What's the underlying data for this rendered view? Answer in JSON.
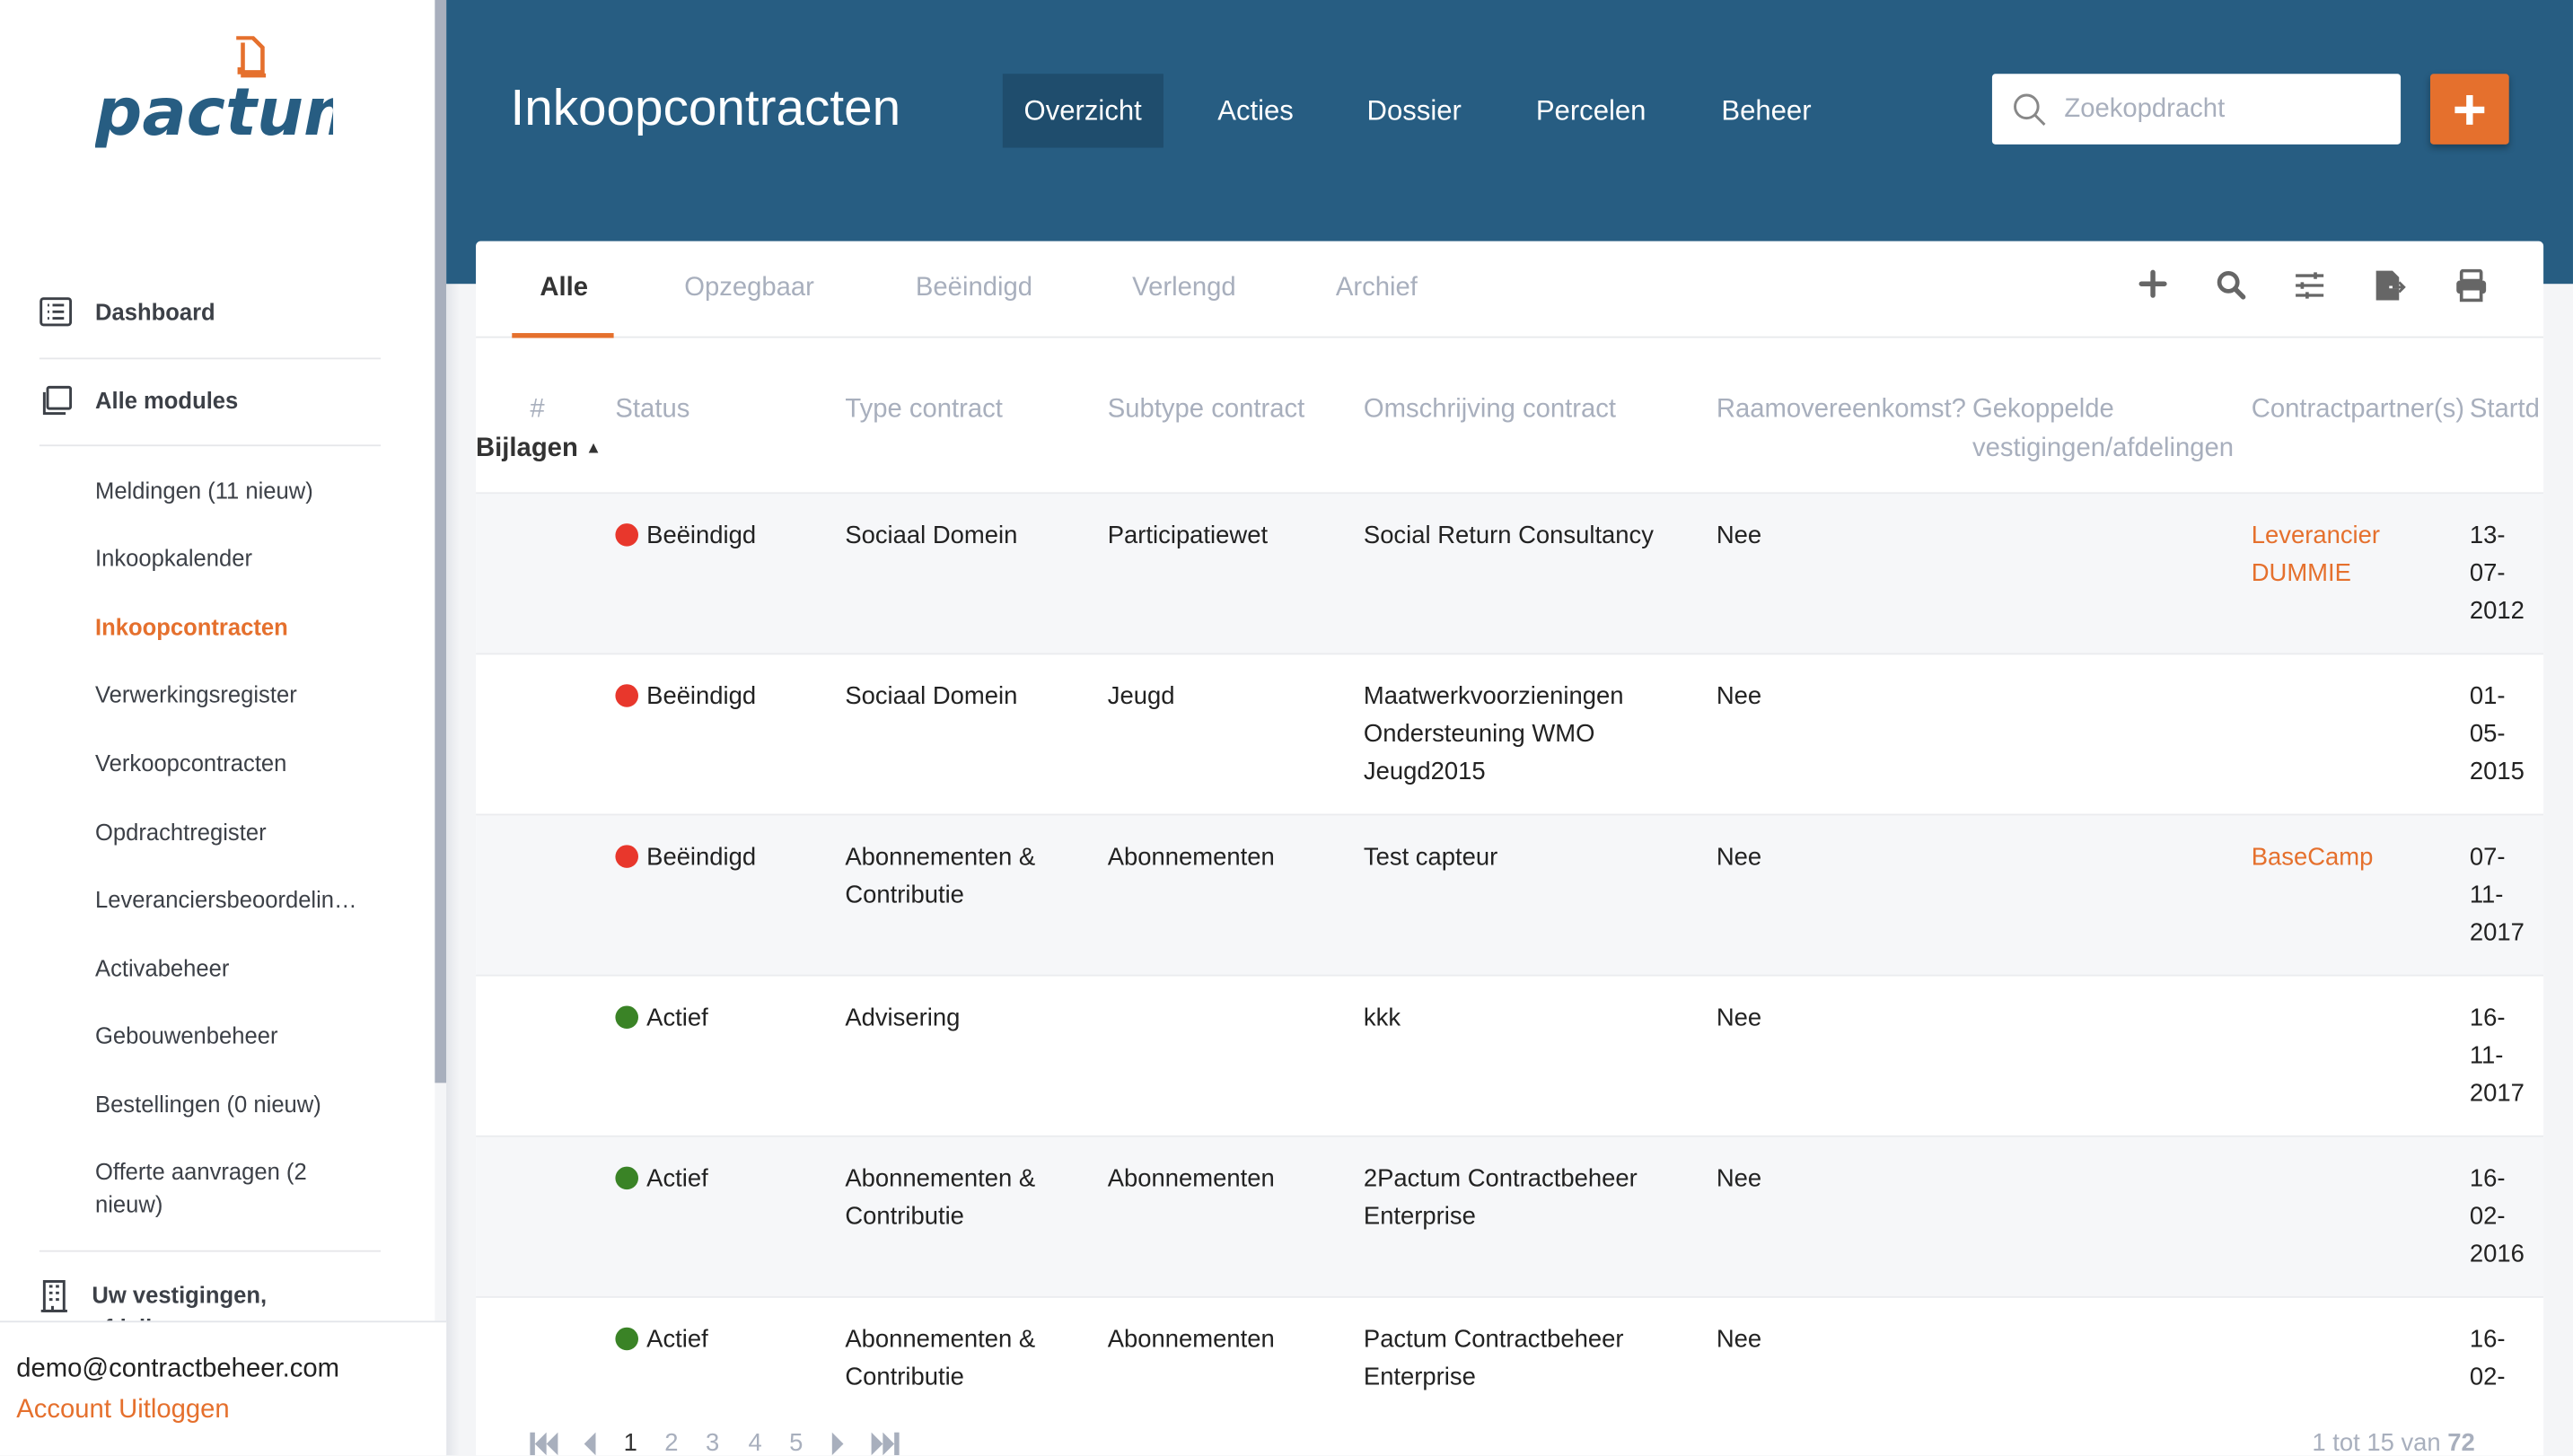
{
  "brand": {
    "logo_text": "pactum",
    "colors": {
      "header": "#275d82",
      "accent": "#e5702d",
      "status_ended": "#e8372c",
      "status_active": "#3a8326"
    }
  },
  "sidebar": {
    "main_items": [
      {
        "label": "Dashboard",
        "icon": "list-icon"
      },
      {
        "label": "Alle modules",
        "icon": "copy-icon"
      }
    ],
    "sub_items": [
      {
        "label": "Meldingen (11 nieuw)"
      },
      {
        "label": "Inkoopkalender"
      },
      {
        "label": "Inkoopcontracten",
        "active": true
      },
      {
        "label": "Verwerkingsregister"
      },
      {
        "label": "Verkoopcontracten"
      },
      {
        "label": "Opdrachtregister"
      },
      {
        "label": "Leveranciersbeoordelin…"
      },
      {
        "label": "Activabeheer"
      },
      {
        "label": "Gebouwenbeheer"
      },
      {
        "label": "Bestellingen (0 nieuw)"
      },
      {
        "label": "Offerte aanvragen (2 nieuw)"
      }
    ],
    "locations_label": "Uw vestigingen, afdelingen",
    "user_email": "demo@contractbeheer.com",
    "account_link": "Account",
    "logout_link": "Uitloggen"
  },
  "header": {
    "title": "Inkoopcontracten",
    "nav": [
      "Overzicht",
      "Acties",
      "Dossier",
      "Percelen",
      "Beheer"
    ],
    "active_nav": "Overzicht",
    "search_placeholder": "Zoekopdracht",
    "add_icon": "plus-icon"
  },
  "tabs": [
    "Alle",
    "Opzegbaar",
    "Beëindigd",
    "Verlengd",
    "Archief"
  ],
  "toolbar_icons": [
    "plus-icon",
    "search-icon",
    "sliders-icon",
    "export-icon",
    "print-icon"
  ],
  "table": {
    "columns": {
      "num": "#",
      "attachments": "Bijlagen",
      "status": "Status",
      "type": "Type contract",
      "subtype": "Subtype contract",
      "description": "Omschrijving contract",
      "framework": "Raamovereenkomst?",
      "linked": "Gekoppelde vestigingen/afdelingen",
      "partners": "Contractpartner(s)",
      "start": "Startd"
    },
    "sort": "Bijlagen ascending",
    "rows": [
      {
        "status": "Beëindigd",
        "status_color": "#e8372c",
        "type": "Sociaal Domein",
        "subtype": "Participatiewet",
        "description": "Social Return Consultancy",
        "framework": "Nee",
        "partner": "Leverancier DUMMIE",
        "start": "13-07-2012"
      },
      {
        "status": "Beëindigd",
        "status_color": "#e8372c",
        "type": "Sociaal Domein",
        "subtype": "Jeugd",
        "description": "Maatwerkvoorzieningen Ondersteuning WMO Jeugd2015",
        "framework": "Nee",
        "partner": "",
        "start": "01-05-2015"
      },
      {
        "status": "Beëindigd",
        "status_color": "#e8372c",
        "type": "Abonnementen & Contributie",
        "subtype": "Abonnementen",
        "description": "Test capteur",
        "framework": "Nee",
        "partner": "BaseCamp",
        "start": "07-11-2017"
      },
      {
        "status": "Actief",
        "status_color": "#3a8326",
        "type": "Advisering",
        "subtype": "",
        "description": "kkk",
        "framework": "Nee",
        "partner": "",
        "start": "16-11-2017"
      },
      {
        "status": "Actief",
        "status_color": "#3a8326",
        "type": "Abonnementen & Contributie",
        "subtype": "Abonnementen",
        "description": "2Pactum Contractbeheer Enterprise",
        "framework": "Nee",
        "partner": "",
        "start": "16-02-2016"
      },
      {
        "status": "Actief",
        "status_color": "#3a8326",
        "type": "Abonnementen & Contributie",
        "subtype": "Abonnementen",
        "description": "Pactum Contractbeheer Enterprise",
        "framework": "Nee",
        "partner": "",
        "start": "16-02-"
      }
    ]
  },
  "pagination": {
    "pages": [
      "1",
      "2",
      "3",
      "4",
      "5"
    ],
    "current": "1",
    "summary_prefix": "1 tot 15 van",
    "total": "72"
  }
}
